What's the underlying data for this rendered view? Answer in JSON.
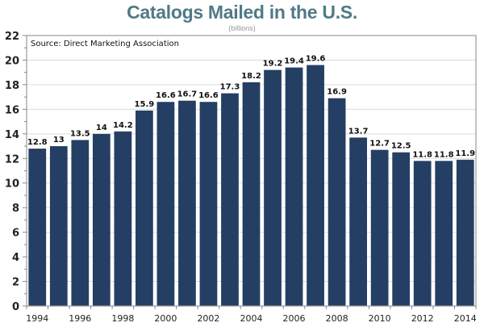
{
  "chart_data": {
    "type": "bar",
    "title": "Catalogs Mailed in the U.S.",
    "subtitle": "(billions)",
    "annotation": "Source: Direct Marketing Association",
    "xlabel": "",
    "ylabel": "",
    "categories": [
      "1994",
      "1995",
      "1996",
      "1997",
      "1998",
      "1999",
      "2000",
      "2001",
      "2002",
      "2003",
      "2004",
      "2005",
      "2006",
      "2007",
      "2008",
      "2009",
      "2010",
      "2011",
      "2012",
      "2013",
      "2014"
    ],
    "values": [
      12.8,
      13,
      13.5,
      14,
      14.2,
      15.9,
      16.6,
      16.7,
      16.6,
      17.3,
      18.2,
      19.2,
      19.4,
      19.6,
      16.9,
      13.7,
      12.7,
      12.5,
      11.8,
      11.8,
      11.9
    ],
    "data_labels": [
      "12.8",
      "13",
      "13.5",
      "14",
      "14.2",
      "15.9",
      "16.6",
      "16.7",
      "16.6",
      "17.3",
      "18.2",
      "19.2",
      "19.4",
      "19.6",
      "16.9",
      "13.7",
      "12.7",
      "12.5",
      "11.8",
      "11.8",
      "11.9"
    ],
    "x_tick_labels": [
      "1994",
      "1996",
      "1998",
      "2000",
      "2002",
      "2004",
      "2006",
      "2008",
      "2010",
      "2012",
      "2014"
    ],
    "y_ticks": [
      0,
      2,
      4,
      6,
      8,
      10,
      12,
      14,
      16,
      18,
      20,
      22
    ],
    "ylim": [
      0,
      22
    ],
    "grid": true,
    "bar_color": "#243f63",
    "title_color": "#4f7a86"
  }
}
